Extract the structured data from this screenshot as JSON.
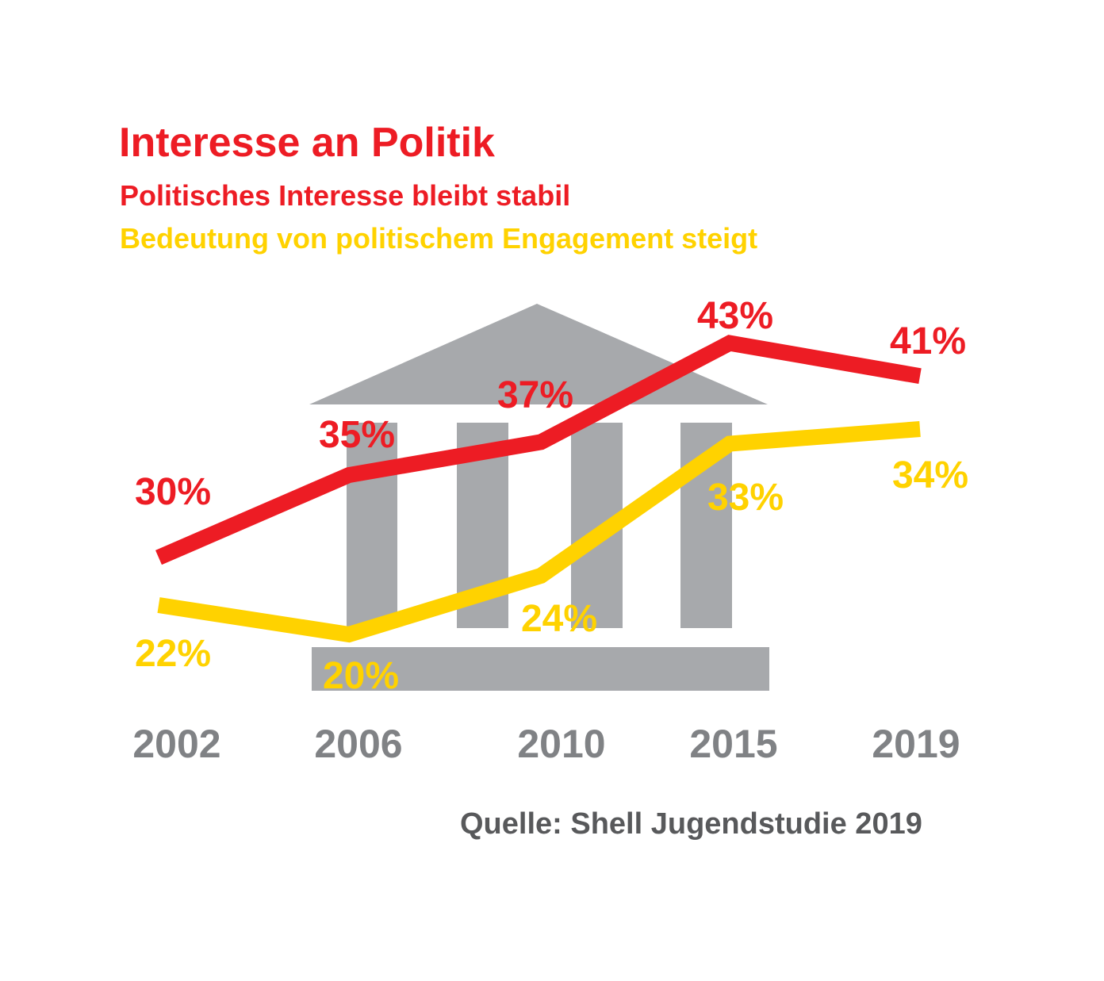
{
  "chart_data": {
    "type": "line",
    "title": "Interesse an Politik",
    "subtitles": [
      "Politisches Interesse bleibt stabil",
      "Bedeutung von politischem Engagement steigt"
    ],
    "categories": [
      "2002",
      "2006",
      "2010",
      "2015",
      "2019"
    ],
    "series": [
      {
        "name": "Politisches Interesse bleibt stabil",
        "color": "#ED1C24",
        "values": [
          30,
          35,
          37,
          43,
          41
        ],
        "labels": [
          "30%",
          "35%",
          "37%",
          "43%",
          "41%"
        ]
      },
      {
        "name": "Bedeutung von politischem Engagement steigt",
        "color": "#FFD200",
        "values": [
          22,
          20,
          24,
          33,
          34
        ],
        "labels": [
          "22%",
          "20%",
          "24%",
          "33%",
          "34%"
        ]
      }
    ],
    "unit": "%",
    "grid": false,
    "background_icon": "parliament-building-icon",
    "source": "Quelle: Shell Jugendstudie 2019"
  }
}
